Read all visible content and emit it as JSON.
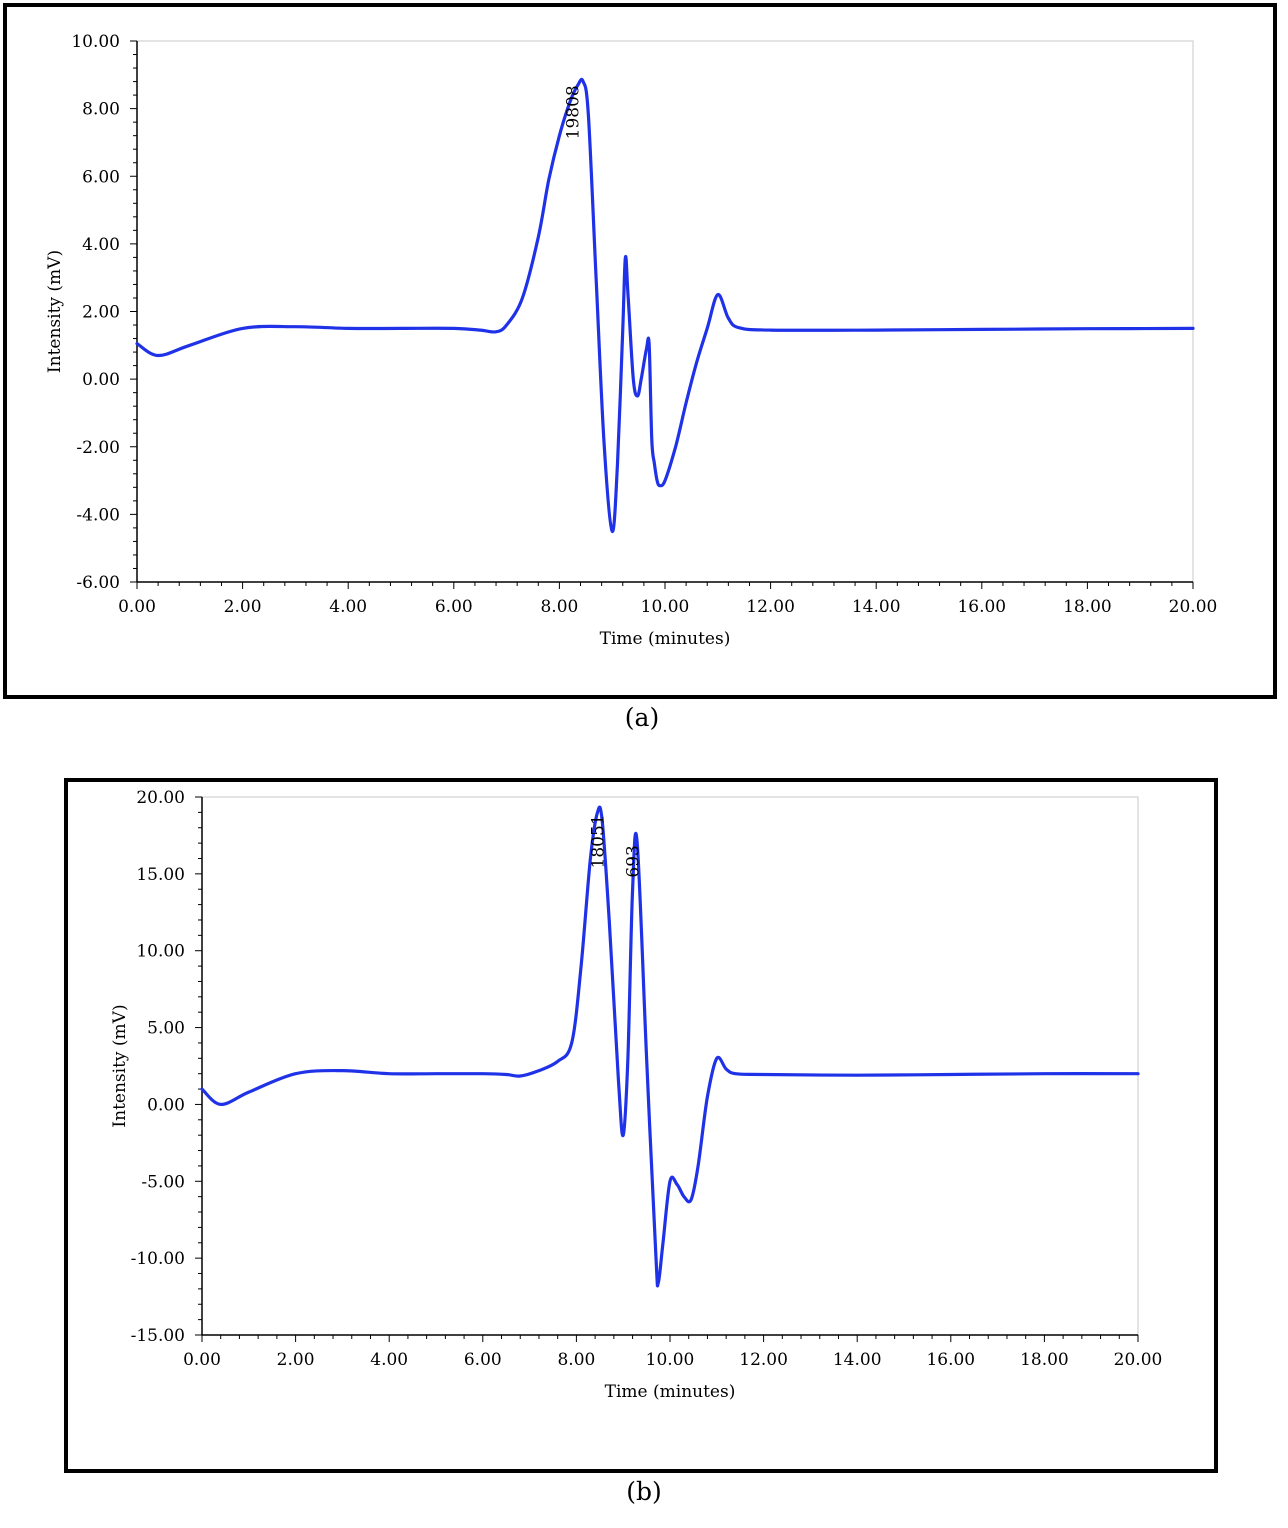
{
  "chart_data": [
    {
      "type": "line",
      "caption": "(a)",
      "xlabel": "Time (minutes)",
      "ylabel": "Intensity (mV)",
      "xlim": [
        0,
        20
      ],
      "ylim": [
        -6,
        10
      ],
      "x_ticks": [
        "0.00",
        "2.00",
        "4.00",
        "6.00",
        "8.00",
        "10.00",
        "12.00",
        "14.00",
        "16.00",
        "18.00",
        "20.00"
      ],
      "y_ticks": [
        "10.00",
        "8.00",
        "6.00",
        "4.00",
        "2.00",
        "0.00",
        "-2.00",
        "-4.00",
        "-6.00"
      ],
      "grid": false,
      "line_color": "#1f32e8",
      "annotations": [
        {
          "text": "19808",
          "x": 8.25,
          "y": 8.75
        }
      ],
      "series": [
        {
          "x": [
            0.0,
            0.4,
            1.0,
            2.0,
            3.0,
            4.0,
            5.0,
            6.0,
            6.5,
            6.8,
            7.0,
            7.3,
            7.6,
            7.8,
            8.0,
            8.2,
            8.35,
            8.45,
            8.55,
            8.7,
            8.85,
            9.0,
            9.1,
            9.2,
            9.25,
            9.3,
            9.4,
            9.48,
            9.55,
            9.65,
            9.7,
            9.75,
            9.8,
            9.85,
            9.9,
            10.0,
            10.2,
            10.4,
            10.6,
            10.8,
            11.0,
            11.2,
            11.4,
            12.0,
            14.0,
            16.0,
            18.0,
            20.0
          ],
          "y": [
            1.05,
            0.7,
            1.0,
            1.5,
            1.55,
            1.5,
            1.5,
            1.5,
            1.45,
            1.4,
            1.6,
            2.4,
            4.2,
            5.9,
            7.2,
            8.2,
            8.7,
            8.8,
            7.8,
            2.8,
            -2.0,
            -4.5,
            -2.5,
            1.5,
            3.6,
            2.5,
            0.0,
            -0.5,
            0.0,
            0.9,
            1.0,
            -1.8,
            -2.5,
            -3.0,
            -3.15,
            -3.0,
            -2.0,
            -0.7,
            0.5,
            1.5,
            2.5,
            1.8,
            1.52,
            1.45,
            1.45,
            1.47,
            1.49,
            1.5
          ]
        }
      ]
    },
    {
      "type": "line",
      "caption": "(b)",
      "xlabel": "Time (minutes)",
      "ylabel": "Intensity (mV)",
      "xlim": [
        0,
        20
      ],
      "ylim": [
        -15,
        20
      ],
      "x_ticks": [
        "0.00",
        "2.00",
        "4.00",
        "6.00",
        "8.00",
        "10.00",
        "12.00",
        "14.00",
        "16.00",
        "18.00",
        "20.00"
      ],
      "y_ticks": [
        "20.00",
        "15.00",
        "10.00",
        "5.00",
        "0.00",
        "-5.00",
        "-10.00",
        "-15.00"
      ],
      "grid": false,
      "line_color": "#1f32e8",
      "annotations": [
        {
          "text": "18051",
          "x": 8.45,
          "y": 19.0
        },
        {
          "text": "693",
          "x": 9.2,
          "y": 17.0
        }
      ],
      "series": [
        {
          "x": [
            0.0,
            0.4,
            1.0,
            2.0,
            3.0,
            4.0,
            5.0,
            6.0,
            6.5,
            6.8,
            7.2,
            7.6,
            7.9,
            8.1,
            8.3,
            8.45,
            8.55,
            8.7,
            8.9,
            9.0,
            9.1,
            9.2,
            9.3,
            9.5,
            9.7,
            9.75,
            9.85,
            10.0,
            10.15,
            10.3,
            10.45,
            10.6,
            10.8,
            11.0,
            11.2,
            11.4,
            12.0,
            14.0,
            16.0,
            18.0,
            20.0
          ],
          "y": [
            1.0,
            0.0,
            0.8,
            2.0,
            2.2,
            2.0,
            2.0,
            2.0,
            1.95,
            1.85,
            2.2,
            2.8,
            4.0,
            9.0,
            16.0,
            19.0,
            18.5,
            12.0,
            1.5,
            -2.0,
            3.0,
            14.0,
            17.0,
            3.0,
            -10.0,
            -11.6,
            -9.0,
            -5.0,
            -5.2,
            -6.0,
            -6.2,
            -4.0,
            0.5,
            3.0,
            2.3,
            2.0,
            1.95,
            1.9,
            1.95,
            2.0,
            2.0
          ]
        }
      ]
    }
  ]
}
